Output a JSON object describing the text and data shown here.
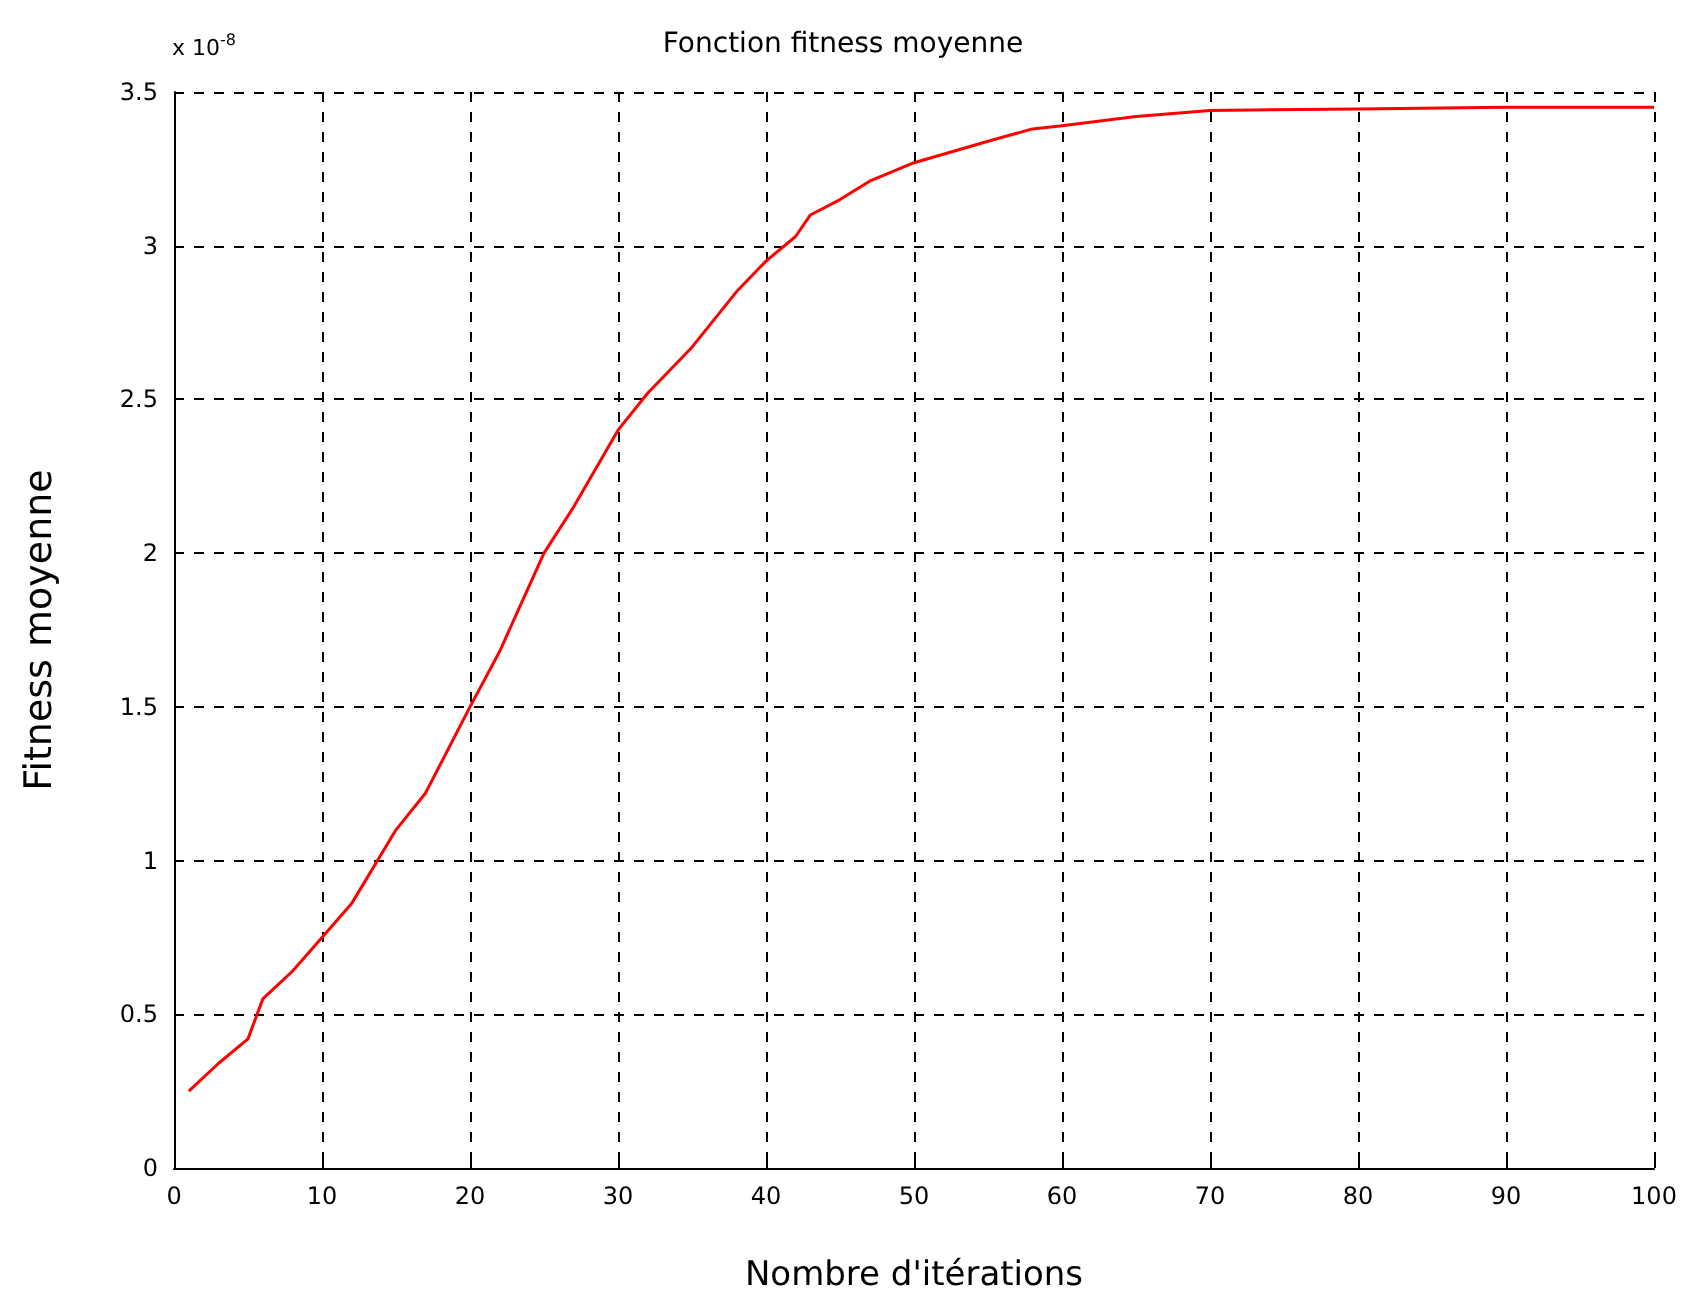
{
  "chart_data": {
    "type": "line",
    "title": "Fonction fitness moyenne",
    "xlabel": "Nombre d'itérations",
    "ylabel": "Fitness moyenne",
    "annotations": [
      "x 10$^{-8}$"
    ],
    "x": [
      1,
      3,
      5,
      6,
      8,
      10,
      12,
      15,
      17,
      20,
      22,
      25,
      27,
      30,
      32,
      35,
      38,
      40,
      42,
      43,
      45,
      47,
      50,
      55,
      58,
      60,
      65,
      70,
      80,
      90,
      100
    ],
    "series": [
      {
        "color": "#ff0000",
        "values": [
          0.25,
          0.34,
          0.42,
          0.55,
          0.64,
          0.75,
          0.86,
          1.1,
          1.22,
          1.5,
          1.68,
          2.0,
          2.15,
          2.4,
          2.52,
          2.67,
          2.85,
          2.95,
          3.03,
          3.1,
          3.15,
          3.21,
          3.27,
          3.34,
          3.38,
          3.39,
          3.42,
          3.44,
          3.445,
          3.45,
          3.45
        ]
      }
    ],
    "xlim": [
      0,
      100
    ],
    "xticks": [
      0,
      10,
      20,
      30,
      40,
      50,
      60,
      70,
      80,
      90,
      100
    ],
    "ylim": [
      0,
      3.5
    ],
    "yticks": [
      0,
      0.5,
      1,
      1.5,
      2,
      2.5,
      3,
      3.5
    ],
    "grid": true,
    "marker": "none",
    "line_style": "solid"
  }
}
